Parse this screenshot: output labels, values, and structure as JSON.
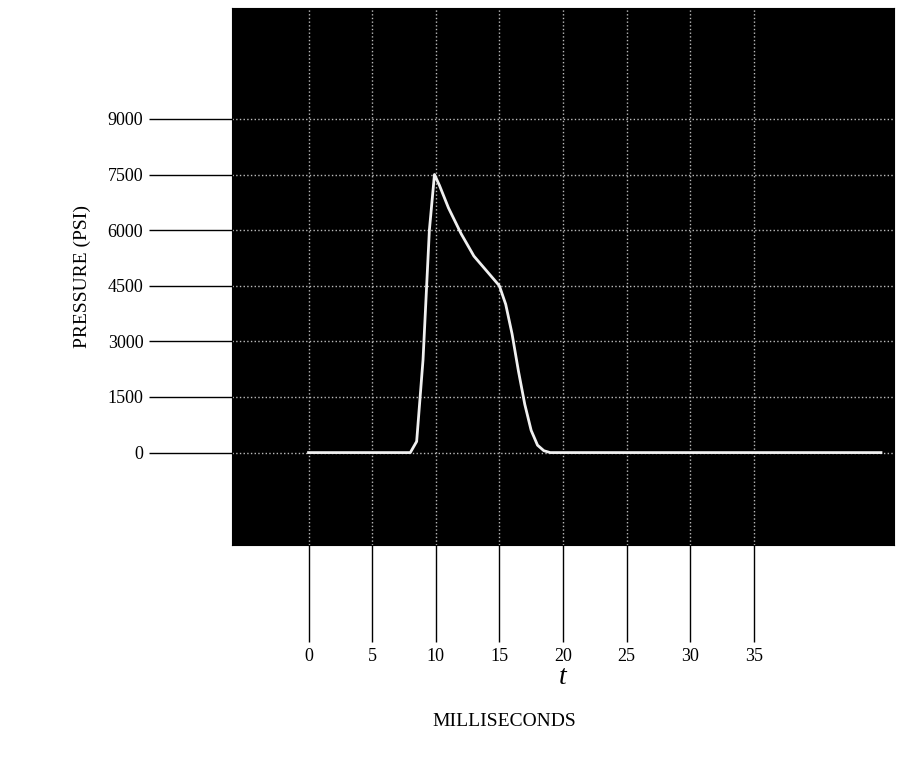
{
  "chart_data": {
    "type": "line",
    "y_label": "PRESSURE (PSI)",
    "x_label": "t",
    "annotations": [
      "MILLISECONDS"
    ],
    "x": [
      0,
      2,
      4,
      6,
      8,
      8.5,
      9,
      9.5,
      9.9,
      10.3,
      11,
      12,
      13,
      14,
      15,
      15.5,
      16,
      16.5,
      17,
      17.5,
      18,
      18.5,
      19,
      20,
      25,
      30,
      35,
      40,
      45
    ],
    "values": [
      0,
      0,
      0,
      0,
      0,
      300,
      2500,
      6000,
      7500,
      7200,
      6600,
      5900,
      5300,
      4900,
      4500,
      4000,
      3200,
      2200,
      1300,
      600,
      200,
      50,
      0,
      0,
      0,
      0,
      0,
      0,
      0
    ],
    "color": "#f0f0f0",
    "xlim": [
      -6,
      46
    ],
    "ylim": [
      -2500,
      12000
    ],
    "xticks": [
      0,
      5,
      10,
      15,
      20,
      25,
      30,
      35
    ],
    "yticks": [
      0,
      1500,
      3000,
      4500,
      6000,
      7500,
      9000
    ],
    "grid": true
  }
}
